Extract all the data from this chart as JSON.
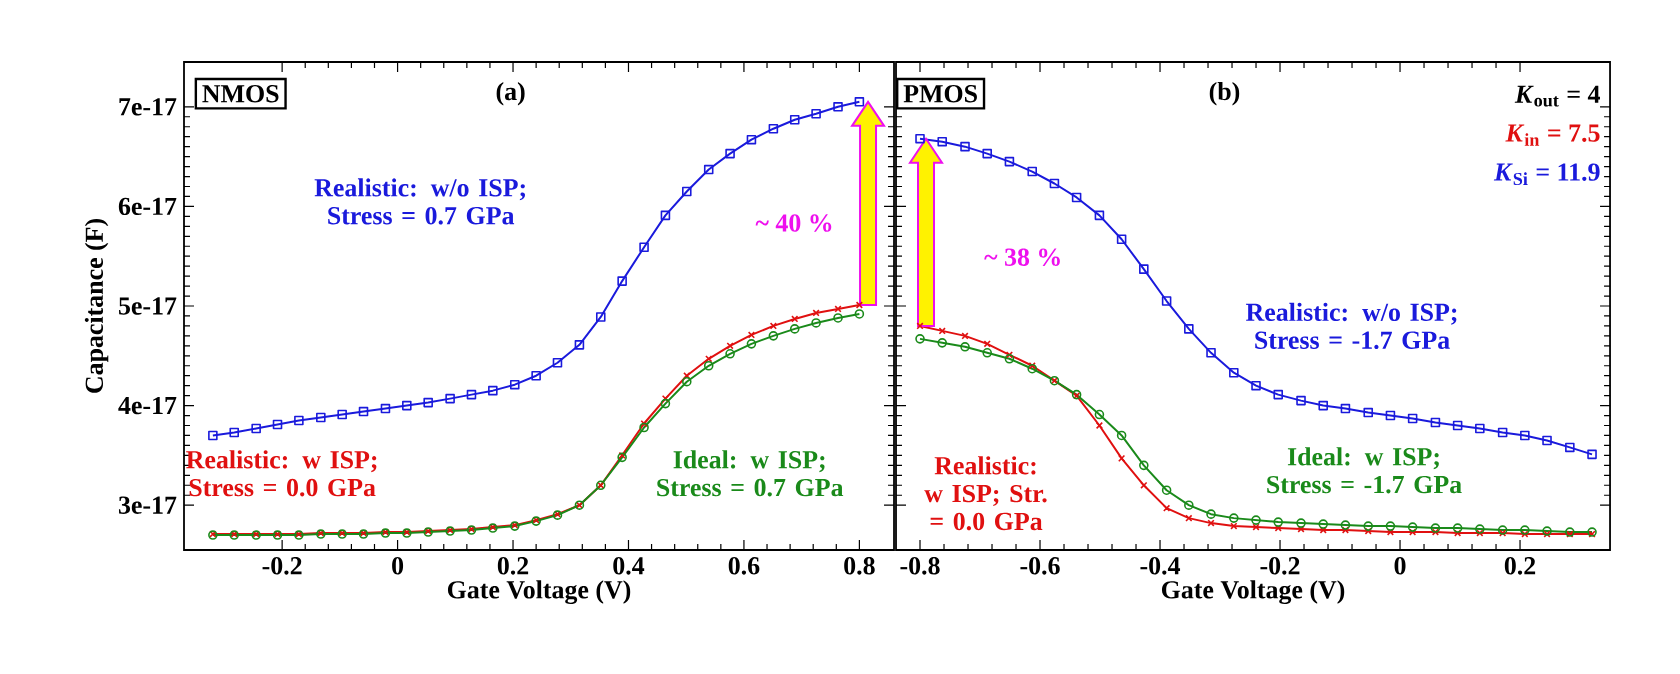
{
  "chart_data": [
    {
      "type": "line",
      "title": "(a)",
      "xlabel": "Gate Voltage (V)",
      "ylabel": "Capacitance (F)",
      "x": [
        -0.32,
        -0.283,
        -0.245,
        -0.208,
        -0.171,
        -0.133,
        -0.096,
        -0.059,
        -0.021,
        0.016,
        0.053,
        0.091,
        0.128,
        0.165,
        0.203,
        0.24,
        0.277,
        0.315,
        0.352,
        0.389,
        0.427,
        0.464,
        0.501,
        0.539,
        0.576,
        0.613,
        0.651,
        0.688,
        0.725,
        0.763,
        0.8
      ],
      "series": [
        {
          "name": "Realistic: w/o ISP; Stress = 0.7 GPa",
          "color": "#1a1adc",
          "marker": "square",
          "values": [
            3.7e-17,
            3.73e-17,
            3.77e-17,
            3.81e-17,
            3.85e-17,
            3.88e-17,
            3.91e-17,
            3.94e-17,
            3.97e-17,
            4e-17,
            4.03e-17,
            4.07e-17,
            4.11e-17,
            4.15e-17,
            4.21e-17,
            4.3e-17,
            4.43e-17,
            4.61e-17,
            4.89e-17,
            5.25e-17,
            5.59e-17,
            5.91e-17,
            6.15e-17,
            6.37e-17,
            6.53e-17,
            6.67e-17,
            6.78e-17,
            6.87e-17,
            6.93e-17,
            7e-17,
            7.05e-17
          ]
        },
        {
          "name": "Realistic: w ISP; Stress = 0.0 GPa",
          "color": "#e01010",
          "marker": "cross",
          "values": [
            2.71e-17,
            2.71e-17,
            2.71e-17,
            2.71e-17,
            2.71e-17,
            2.72e-17,
            2.72e-17,
            2.72e-17,
            2.73e-17,
            2.73e-17,
            2.74e-17,
            2.75e-17,
            2.76e-17,
            2.78e-17,
            2.8e-17,
            2.85e-17,
            2.91e-17,
            3e-17,
            3.2e-17,
            3.5e-17,
            3.82e-17,
            4.07e-17,
            4.3e-17,
            4.47e-17,
            4.6e-17,
            4.71e-17,
            4.8e-17,
            4.87e-17,
            4.93e-17,
            4.97e-17,
            5.01e-17
          ]
        },
        {
          "name": "Ideal: w ISP; Stress = 0.7 GPa",
          "color": "#1a8a1a",
          "marker": "circle",
          "values": [
            2.7e-17,
            2.7e-17,
            2.7e-17,
            2.7e-17,
            2.7e-17,
            2.71e-17,
            2.71e-17,
            2.71e-17,
            2.72e-17,
            2.72e-17,
            2.73e-17,
            2.74e-17,
            2.75e-17,
            2.77e-17,
            2.79e-17,
            2.84e-17,
            2.9e-17,
            3e-17,
            3.2e-17,
            3.48e-17,
            3.78e-17,
            4.02e-17,
            4.24e-17,
            4.4e-17,
            4.52e-17,
            4.62e-17,
            4.7e-17,
            4.77e-17,
            4.83e-17,
            4.88e-17,
            4.92e-17
          ]
        }
      ],
      "xlim": [
        -0.37,
        0.86
      ],
      "ylim": [
        2.55e-17,
        7.45e-17
      ],
      "xticks": [
        -0.2,
        0,
        0.2,
        0.4,
        0.6,
        0.8
      ],
      "yticks": [
        {
          "value": 3e-17,
          "label": "3e-17"
        },
        {
          "value": 4e-17,
          "label": "4e-17"
        },
        {
          "value": 5e-17,
          "label": "5e-17"
        },
        {
          "value": 6e-17,
          "label": "6e-17"
        },
        {
          "value": 7e-17,
          "label": "7e-17"
        }
      ],
      "grid": false,
      "line_style": "solid",
      "annotations": [
        "NMOS",
        "~ 40 %"
      ]
    },
    {
      "type": "line",
      "title": "(b)",
      "xlabel": "Gate Voltage (V)",
      "x": [
        -0.8,
        -0.763,
        -0.725,
        -0.688,
        -0.651,
        -0.613,
        -0.576,
        -0.539,
        -0.501,
        -0.464,
        -0.427,
        -0.389,
        -0.352,
        -0.315,
        -0.277,
        -0.24,
        -0.203,
        -0.165,
        -0.128,
        -0.091,
        -0.053,
        -0.016,
        0.021,
        0.059,
        0.096,
        0.133,
        0.171,
        0.208,
        0.245,
        0.283,
        0.32
      ],
      "series": [
        {
          "name": "Realistic: w/o ISP; Stress = -1.7 GPa",
          "color": "#1a1adc",
          "marker": "square",
          "values": [
            6.68e-17,
            6.65e-17,
            6.6e-17,
            6.53e-17,
            6.45e-17,
            6.35e-17,
            6.23e-17,
            6.09e-17,
            5.91e-17,
            5.67e-17,
            5.37e-17,
            5.05e-17,
            4.77e-17,
            4.53e-17,
            4.33e-17,
            4.2e-17,
            4.11e-17,
            4.05e-17,
            4e-17,
            3.97e-17,
            3.93e-17,
            3.9e-17,
            3.87e-17,
            3.83e-17,
            3.8e-17,
            3.77e-17,
            3.73e-17,
            3.7e-17,
            3.65e-17,
            3.58e-17,
            3.51e-17
          ]
        },
        {
          "name": "Realistic: w ISP; Str. = 0.0 GPa",
          "color": "#e01010",
          "marker": "cross",
          "values": [
            4.8e-17,
            4.75e-17,
            4.7e-17,
            4.62e-17,
            4.51e-17,
            4.4e-17,
            4.25e-17,
            4.1e-17,
            3.8e-17,
            3.47e-17,
            3.2e-17,
            2.97e-17,
            2.87e-17,
            2.82e-17,
            2.79e-17,
            2.78e-17,
            2.77e-17,
            2.76e-17,
            2.75e-17,
            2.75e-17,
            2.74e-17,
            2.73e-17,
            2.73e-17,
            2.73e-17,
            2.72e-17,
            2.72e-17,
            2.72e-17,
            2.71e-17,
            2.71e-17,
            2.71e-17,
            2.71e-17
          ]
        },
        {
          "name": "Ideal: w ISP; Stress = -1.7 GPa",
          "color": "#1a8a1a",
          "marker": "circle",
          "values": [
            4.67e-17,
            4.63e-17,
            4.59e-17,
            4.53e-17,
            4.47e-17,
            4.37e-17,
            4.25e-17,
            4.11e-17,
            3.91e-17,
            3.7e-17,
            3.4e-17,
            3.15e-17,
            3e-17,
            2.91e-17,
            2.87e-17,
            2.85e-17,
            2.83e-17,
            2.82e-17,
            2.81e-17,
            2.8e-17,
            2.79e-17,
            2.79e-17,
            2.78e-17,
            2.77e-17,
            2.77e-17,
            2.76e-17,
            2.75e-17,
            2.75e-17,
            2.74e-17,
            2.73e-17,
            2.73e-17
          ]
        }
      ],
      "xlim": [
        -0.84,
        0.35
      ],
      "ylim": [
        2.55e-17,
        7.45e-17
      ],
      "xticks": [
        -0.8,
        -0.6,
        -0.4,
        -0.2,
        0,
        0.2
      ],
      "yticks": [
        {
          "value": 3e-17,
          "label": null
        },
        {
          "value": 4e-17,
          "label": null
        },
        {
          "value": 5e-17,
          "label": null
        },
        {
          "value": 6e-17,
          "label": null
        },
        {
          "value": 7e-17,
          "label": null
        }
      ],
      "tick_labels": "x",
      "grid": false,
      "line_style": "solid",
      "annotations": [
        "PMOS",
        "~ 38 %",
        "*K*$_{out}$ = 4",
        "*K*$_{in}$ = 7.5",
        "*K*$_{Si}$ = 11.9"
      ]
    }
  ]
}
